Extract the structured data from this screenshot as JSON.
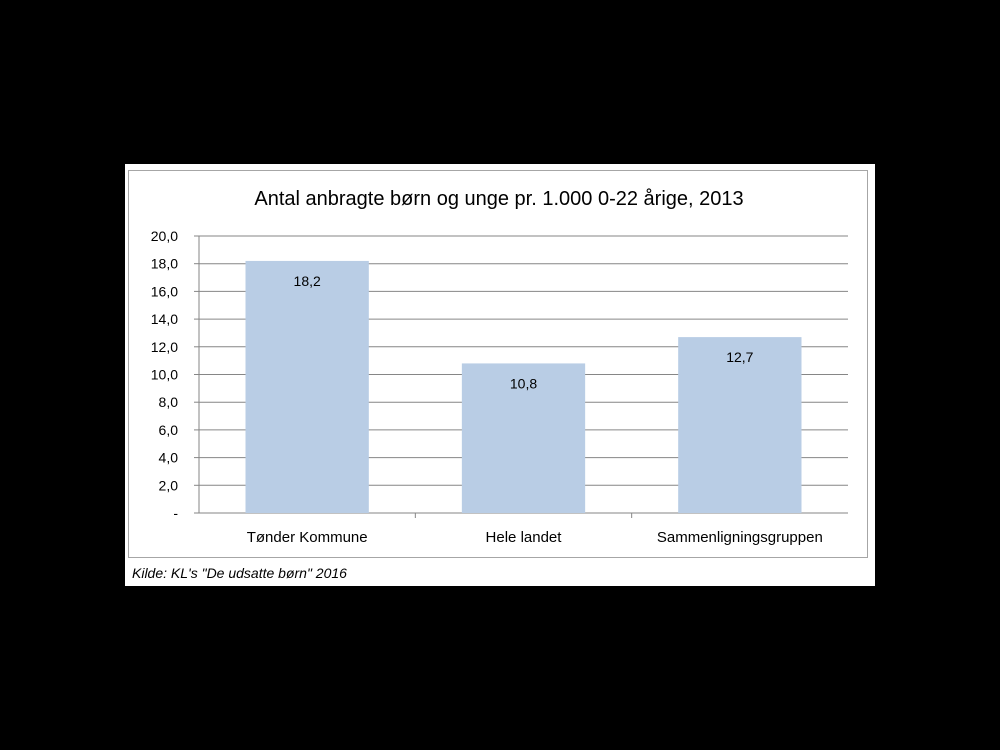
{
  "chart_data": {
    "type": "bar",
    "title": "Antal anbragte børn og unge pr. 1.000 0-22 årige, 2013",
    "categories": [
      "Tønder Kommune",
      "Hele landet",
      "Sammenligningsgruppen"
    ],
    "values": [
      18.2,
      10.8,
      12.7
    ],
    "value_labels": [
      "18,2",
      "10,8",
      "12,7"
    ],
    "ylim": [
      0,
      20
    ],
    "y_ticks": [
      0,
      2,
      4,
      6,
      8,
      10,
      12,
      14,
      16,
      18,
      20
    ],
    "y_tick_labels": [
      "-",
      "2,0",
      "4,0",
      "6,0",
      "8,0",
      "10,0",
      "12,0",
      "14,0",
      "16,0",
      "18,0",
      "20,0"
    ],
    "xlabel": "",
    "ylabel": "",
    "grid": true,
    "bar_color": "#b9cde5",
    "grid_color": "#868686"
  },
  "source_note": "Kilde: KL's \"De udsatte børn\" 2016"
}
